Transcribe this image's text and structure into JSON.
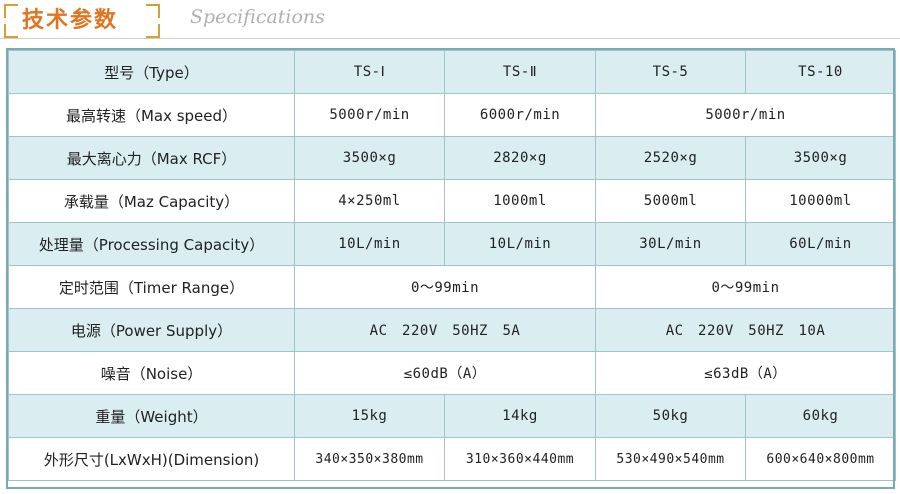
{
  "header": {
    "title_cn": "技术参数",
    "title_en": "Specifications"
  },
  "table": {
    "head": {
      "label": "型号（Type）",
      "models": [
        "TS-Ⅰ",
        "TS-Ⅱ",
        "TS-5",
        "TS-10"
      ]
    },
    "max_speed": {
      "label": "最高转速（Max speed）",
      "ts1": "5000r/min",
      "ts2": "6000r/min",
      "ts5_10": "5000r/min"
    },
    "max_rcf": {
      "label": "最大离心力（Max RCF）",
      "values": [
        "3500×g",
        "2820×g",
        "2520×g",
        "3500×g"
      ]
    },
    "capacity": {
      "label": "承载量（Maz Capacity）",
      "values": [
        "4×250ml",
        "1000ml",
        "5000ml",
        "10000ml"
      ]
    },
    "processing": {
      "label": "处理量（Processing Capacity）",
      "values": [
        "10L/min",
        "10L/min",
        "30L/min",
        "60L/min"
      ]
    },
    "timer": {
      "label": "定时范围（Timer Range）",
      "left": "0～99min",
      "right": "0～99min"
    },
    "power": {
      "label": "电源（Power Supply）",
      "left": "AC　220V　50HZ　5A",
      "right": "AC　220V　50HZ　10A"
    },
    "noise": {
      "label": "噪音（Noise）",
      "left": "≤60dB（A）",
      "right": "≤63dB（A）"
    },
    "weight": {
      "label": "重量（Weight）",
      "values": [
        "15kg",
        "14kg",
        "50kg",
        "60kg"
      ]
    },
    "dimension": {
      "label": "外形尺寸(LxWxH)(Dimension)",
      "values": [
        "340×350×380mm",
        "310×360×440mm",
        "530×490×540mm",
        "600×640×800mm"
      ]
    }
  }
}
